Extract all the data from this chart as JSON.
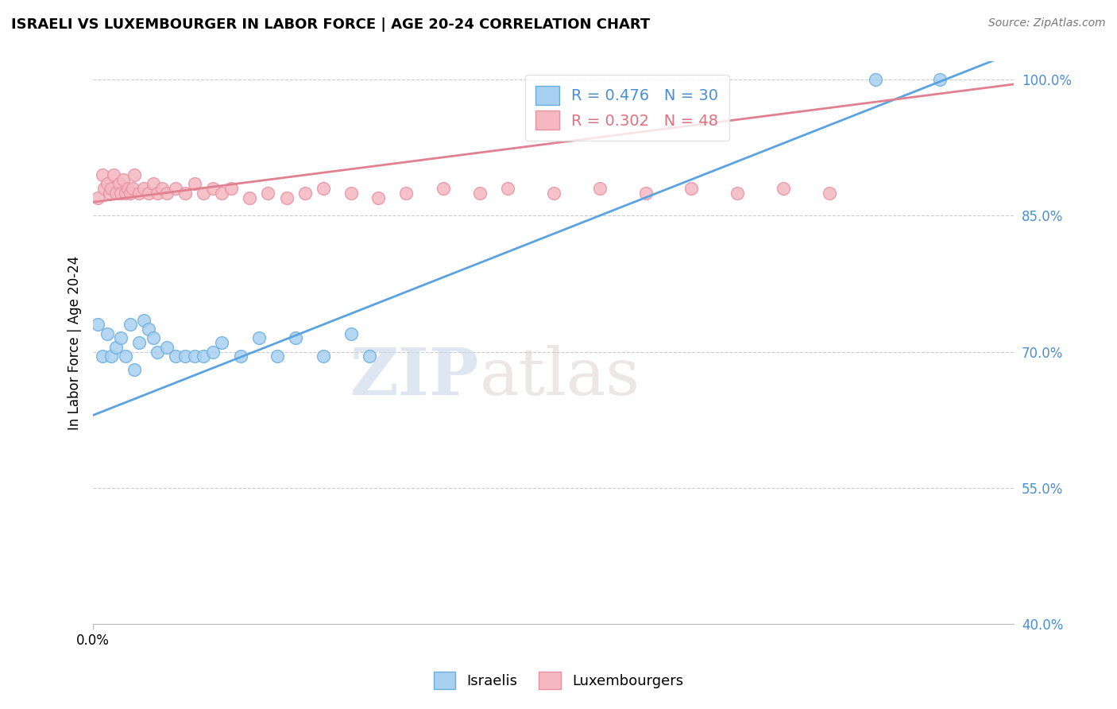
{
  "title": "ISRAELI VS LUXEMBOURGER IN LABOR FORCE | AGE 20-24 CORRELATION CHART",
  "source": "Source: ZipAtlas.com",
  "ylabel": "In Labor Force | Age 20-24",
  "xlim": [
    0.0,
    1.0
  ],
  "ylim": [
    0.4,
    1.02
  ],
  "yticks": [
    0.4,
    0.55,
    0.7,
    0.85,
    1.0
  ],
  "ytick_labels": [
    "40.0%",
    "55.0%",
    "70.0%",
    "85.0%",
    "100.0%"
  ],
  "watermark_zip": "ZIP",
  "watermark_atlas": "atlas",
  "legend_r_blue": "R = 0.476",
  "legend_n_blue": "N = 30",
  "legend_r_pink": "R = 0.302",
  "legend_n_pink": "N = 48",
  "color_blue_fill": "#a8d0f0",
  "color_pink_fill": "#f5b8c0",
  "color_blue_edge": "#6aaee0",
  "color_pink_edge": "#e890a0",
  "color_blue_line": "#5ba3e0",
  "color_pink_line": "#e08090",
  "color_blue_text": "#4a8fd4",
  "color_pink_text": "#e07080",
  "blue_trend_x": [
    0.0,
    1.0
  ],
  "blue_trend_y": [
    0.63,
    1.03
  ],
  "pink_trend_x": [
    0.0,
    1.0
  ],
  "pink_trend_y": [
    0.865,
    0.995
  ],
  "israelis_x": [
    0.005,
    0.01,
    0.015,
    0.02,
    0.025,
    0.03,
    0.035,
    0.04,
    0.045,
    0.05,
    0.055,
    0.06,
    0.065,
    0.07,
    0.08,
    0.09,
    0.1,
    0.11,
    0.12,
    0.13,
    0.14,
    0.16,
    0.18,
    0.2,
    0.22,
    0.25,
    0.28,
    0.3,
    0.85,
    0.92
  ],
  "israelis_y": [
    0.73,
    0.695,
    0.72,
    0.695,
    0.705,
    0.715,
    0.695,
    0.73,
    0.68,
    0.71,
    0.735,
    0.725,
    0.715,
    0.7,
    0.705,
    0.695,
    0.695,
    0.695,
    0.695,
    0.7,
    0.71,
    0.695,
    0.715,
    0.695,
    0.715,
    0.695,
    0.72,
    0.695,
    1.0,
    1.0
  ],
  "luxembourgers_x": [
    0.005,
    0.01,
    0.012,
    0.015,
    0.018,
    0.02,
    0.022,
    0.025,
    0.028,
    0.03,
    0.033,
    0.035,
    0.038,
    0.04,
    0.043,
    0.045,
    0.05,
    0.055,
    0.06,
    0.065,
    0.07,
    0.075,
    0.08,
    0.09,
    0.1,
    0.11,
    0.12,
    0.13,
    0.14,
    0.15,
    0.17,
    0.19,
    0.21,
    0.23,
    0.25,
    0.28,
    0.31,
    0.34,
    0.38,
    0.42,
    0.45,
    0.5,
    0.55,
    0.6,
    0.65,
    0.7,
    0.75,
    0.8
  ],
  "luxembourgers_y": [
    0.87,
    0.895,
    0.88,
    0.885,
    0.875,
    0.88,
    0.895,
    0.875,
    0.885,
    0.875,
    0.89,
    0.875,
    0.88,
    0.875,
    0.88,
    0.895,
    0.875,
    0.88,
    0.875,
    0.885,
    0.875,
    0.88,
    0.875,
    0.88,
    0.875,
    0.885,
    0.875,
    0.88,
    0.875,
    0.88,
    0.87,
    0.875,
    0.87,
    0.875,
    0.88,
    0.875,
    0.87,
    0.875,
    0.88,
    0.875,
    0.88,
    0.875,
    0.88,
    0.875,
    0.88,
    0.875,
    0.88,
    0.875
  ]
}
